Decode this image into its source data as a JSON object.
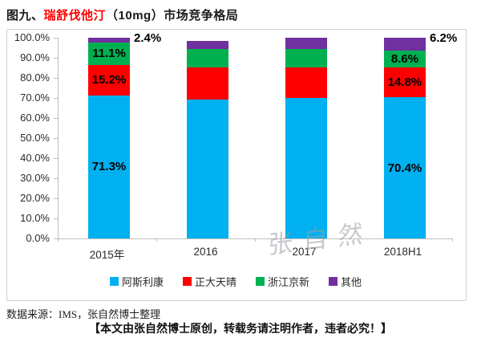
{
  "title": {
    "prefix": "图九、",
    "highlight": "瑞舒伐他汀",
    "suffix": "（10mg）市场竞争格局"
  },
  "colors": {
    "title_highlight": "#ff0000",
    "axis": "#bfbfbf",
    "azn_blue": "#00b0f0",
    "cttq_red": "#ff0000",
    "jingxin_green": "#00b050",
    "other_purple": "#7030a0"
  },
  "chart_data": {
    "type": "bar",
    "stacked": true,
    "title": "瑞舒伐他汀（10mg）市场竞争格局",
    "categories": [
      "2015年",
      "2016",
      "2017",
      "2018H1"
    ],
    "series": [
      {
        "name": "阿斯利康",
        "color": "#00b0f0",
        "values": [
          71.3,
          69.2,
          70.0,
          70.4
        ]
      },
      {
        "name": "正大天晴",
        "color": "#ff0000",
        "values": [
          15.2,
          16.0,
          15.2,
          14.8
        ]
      },
      {
        "name": "浙江京新",
        "color": "#00b050",
        "values": [
          11.1,
          9.2,
          9.2,
          8.6
        ]
      },
      {
        "name": "其他",
        "color": "#7030a0",
        "values": [
          2.4,
          4.0,
          5.6,
          6.2
        ]
      }
    ],
    "data_labels": [
      {
        "category_index": 0,
        "series_index": 0,
        "text": "71.3%"
      },
      {
        "category_index": 0,
        "series_index": 1,
        "text": "15.2%"
      },
      {
        "category_index": 0,
        "series_index": 2,
        "text": "11.1%"
      },
      {
        "category_index": 3,
        "series_index": 0,
        "text": "70.4%"
      },
      {
        "category_index": 3,
        "series_index": 1,
        "text": "14.8%"
      },
      {
        "category_index": 3,
        "series_index": 2,
        "text": "8.6%"
      }
    ],
    "annotations": [
      {
        "category_index": 0,
        "text": "2.4%"
      },
      {
        "category_index": 3,
        "text": "6.2%"
      }
    ],
    "yticks": [
      "100.0%",
      "90.0%",
      "80.0%",
      "70.0%",
      "60.0%",
      "50.0%",
      "40.0%",
      "30.0%",
      "20.0%",
      "10.0%",
      "0.0%"
    ],
    "ylim": [
      0,
      100
    ],
    "grid": false,
    "legend_position": "bottom"
  },
  "watermark": "张自然",
  "source_note": "数据来源：IMS，张自然博士整理",
  "disclaimer": "【本文由张自然博士原创，转载务请注明作者，违者必究！】"
}
